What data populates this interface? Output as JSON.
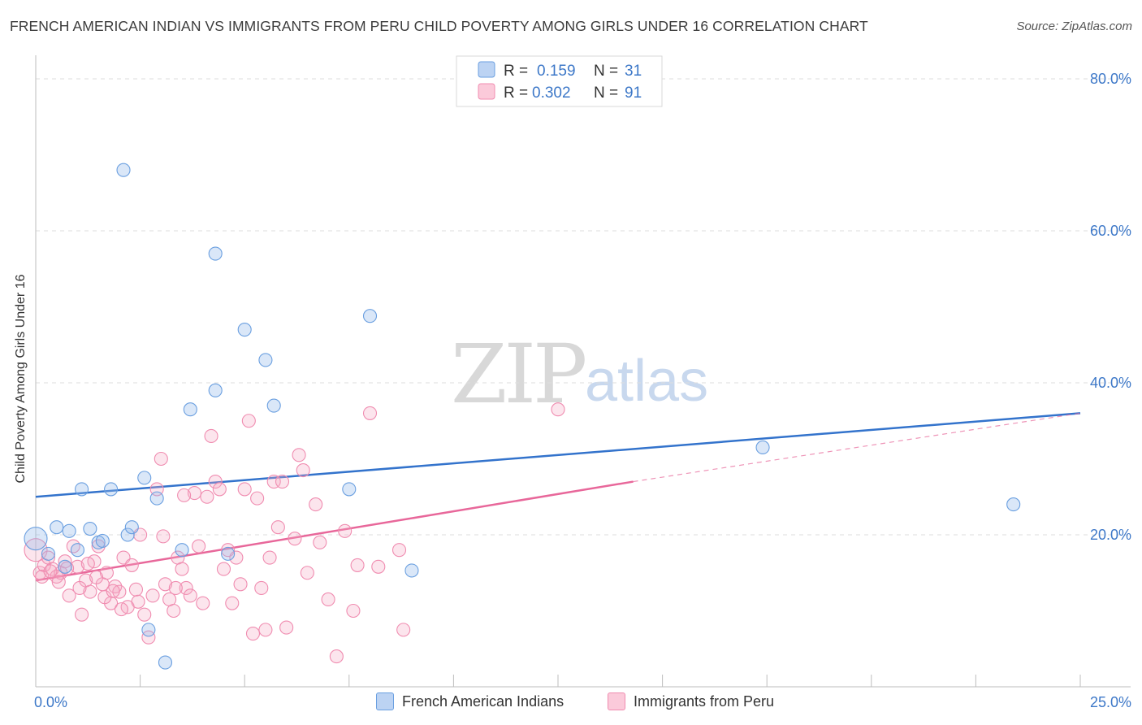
{
  "title": "FRENCH AMERICAN INDIAN VS IMMIGRANTS FROM PERU CHILD POVERTY AMONG GIRLS UNDER 16 CORRELATION CHART",
  "source": "Source: ZipAtlas.com",
  "watermark": {
    "zip": "ZIP",
    "atlas": "atlas"
  },
  "legend": {
    "r_label": "R =",
    "n_label": "N =",
    "series1": {
      "r": "0.159",
      "n": "31"
    },
    "series2": {
      "r": "0.302",
      "n": "91"
    }
  },
  "bottom_legend": [
    "French American Indians",
    "Immigrants from Peru"
  ],
  "chart_data": {
    "type": "scatter",
    "title": "FRENCH AMERICAN INDIAN VS IMMIGRANTS FROM PERU CHILD POVERTY AMONG GIRLS UNDER 16 CORRELATION CHART",
    "xlabel": "",
    "ylabel": "Child Poverty Among Girls Under 16",
    "xlim": [
      0,
      25
    ],
    "ylim": [
      0,
      80
    ],
    "x_ticks": [
      "0.0%",
      "25.0%"
    ],
    "y_ticks": [
      {
        "value": 20,
        "label": "20.0%"
      },
      {
        "value": 40,
        "label": "40.0%"
      },
      {
        "value": 60,
        "label": "60.0%"
      },
      {
        "value": 80,
        "label": "80.0%"
      }
    ],
    "colors": {
      "series1": "#6a9fe0",
      "series2": "#f08cb0",
      "line1": "#3373cc",
      "line2": "#e8679a"
    },
    "series": [
      {
        "name": "French American Indians",
        "r": 0.159,
        "n": 31,
        "trend": {
          "x": [
            0,
            25
          ],
          "y": [
            25.0,
            36.0
          ]
        },
        "points": [
          {
            "x": 0.0,
            "y": 19.5,
            "big": true
          },
          {
            "x": 0.3,
            "y": 17.5
          },
          {
            "x": 0.5,
            "y": 21.0
          },
          {
            "x": 0.7,
            "y": 15.8
          },
          {
            "x": 0.8,
            "y": 20.5
          },
          {
            "x": 1.0,
            "y": 18.0
          },
          {
            "x": 1.1,
            "y": 26.0
          },
          {
            "x": 1.3,
            "y": 20.8
          },
          {
            "x": 1.5,
            "y": 19.0
          },
          {
            "x": 1.6,
            "y": 19.2
          },
          {
            "x": 1.8,
            "y": 26.0
          },
          {
            "x": 2.1,
            "y": 68.0
          },
          {
            "x": 2.2,
            "y": 20.0
          },
          {
            "x": 2.3,
            "y": 21.0
          },
          {
            "x": 2.6,
            "y": 27.5
          },
          {
            "x": 2.7,
            "y": 7.5
          },
          {
            "x": 2.9,
            "y": 24.8
          },
          {
            "x": 3.1,
            "y": 3.2
          },
          {
            "x": 3.5,
            "y": 18.0
          },
          {
            "x": 3.7,
            "y": 36.5
          },
          {
            "x": 4.3,
            "y": 57.0
          },
          {
            "x": 4.3,
            "y": 39.0
          },
          {
            "x": 4.6,
            "y": 17.5
          },
          {
            "x": 5.0,
            "y": 47.0
          },
          {
            "x": 5.5,
            "y": 43.0
          },
          {
            "x": 5.7,
            "y": 37.0
          },
          {
            "x": 7.5,
            "y": 26.0
          },
          {
            "x": 8.0,
            "y": 48.8
          },
          {
            "x": 9.0,
            "y": 15.3
          },
          {
            "x": 17.4,
            "y": 31.5
          },
          {
            "x": 23.4,
            "y": 24.0
          }
        ]
      },
      {
        "name": "Immigrants from Peru",
        "r": 0.302,
        "n": 91,
        "trend": {
          "x": [
            0,
            14.3
          ],
          "y": [
            14.0,
            27.0
          ]
        },
        "trend_dashed": {
          "x": [
            14.3,
            25
          ],
          "y": [
            27.0,
            36.0
          ]
        },
        "points": [
          {
            "x": 0.0,
            "y": 18.0,
            "big": true
          },
          {
            "x": 0.1,
            "y": 15.0
          },
          {
            "x": 0.2,
            "y": 16.0
          },
          {
            "x": 0.3,
            "y": 17.0
          },
          {
            "x": 0.4,
            "y": 15.5
          },
          {
            "x": 0.5,
            "y": 14.5
          },
          {
            "x": 0.6,
            "y": 15.0
          },
          {
            "x": 0.7,
            "y": 16.5
          },
          {
            "x": 0.8,
            "y": 12.0
          },
          {
            "x": 0.9,
            "y": 18.5
          },
          {
            "x": 1.0,
            "y": 15.8
          },
          {
            "x": 1.1,
            "y": 9.5
          },
          {
            "x": 1.2,
            "y": 14.0
          },
          {
            "x": 1.3,
            "y": 12.5
          },
          {
            "x": 1.4,
            "y": 16.5
          },
          {
            "x": 1.5,
            "y": 18.5
          },
          {
            "x": 1.6,
            "y": 13.5
          },
          {
            "x": 1.7,
            "y": 15.0
          },
          {
            "x": 1.8,
            "y": 11.0
          },
          {
            "x": 1.9,
            "y": 13.2
          },
          {
            "x": 2.0,
            "y": 12.5
          },
          {
            "x": 2.1,
            "y": 17.0
          },
          {
            "x": 2.2,
            "y": 10.5
          },
          {
            "x": 2.3,
            "y": 16.0
          },
          {
            "x": 2.4,
            "y": 12.8
          },
          {
            "x": 2.5,
            "y": 20.0
          },
          {
            "x": 2.6,
            "y": 9.5
          },
          {
            "x": 2.7,
            "y": 6.5
          },
          {
            "x": 2.8,
            "y": 12.0
          },
          {
            "x": 2.9,
            "y": 26.0
          },
          {
            "x": 3.0,
            "y": 30.0
          },
          {
            "x": 3.1,
            "y": 13.5
          },
          {
            "x": 3.2,
            "y": 11.5
          },
          {
            "x": 3.3,
            "y": 10.0
          },
          {
            "x": 3.4,
            "y": 17.0
          },
          {
            "x": 3.5,
            "y": 15.5
          },
          {
            "x": 3.6,
            "y": 13.0
          },
          {
            "x": 3.7,
            "y": 12.0
          },
          {
            "x": 3.8,
            "y": 25.5
          },
          {
            "x": 3.9,
            "y": 18.5
          },
          {
            "x": 4.0,
            "y": 11.0
          },
          {
            "x": 4.1,
            "y": 25.0
          },
          {
            "x": 4.2,
            "y": 33.0
          },
          {
            "x": 4.3,
            "y": 27.0
          },
          {
            "x": 4.4,
            "y": 26.0
          },
          {
            "x": 4.5,
            "y": 15.5
          },
          {
            "x": 4.6,
            "y": 18.0
          },
          {
            "x": 4.7,
            "y": 11.0
          },
          {
            "x": 4.8,
            "y": 17.0
          },
          {
            "x": 4.9,
            "y": 13.5
          },
          {
            "x": 5.0,
            "y": 26.0
          },
          {
            "x": 5.1,
            "y": 35.0
          },
          {
            "x": 5.2,
            "y": 7.0
          },
          {
            "x": 5.3,
            "y": 24.8
          },
          {
            "x": 5.4,
            "y": 13.0
          },
          {
            "x": 5.5,
            "y": 7.5
          },
          {
            "x": 5.6,
            "y": 17.0
          },
          {
            "x": 5.7,
            "y": 27.0
          },
          {
            "x": 5.8,
            "y": 21.0
          },
          {
            "x": 5.9,
            "y": 27.0
          },
          {
            "x": 6.0,
            "y": 7.8
          },
          {
            "x": 6.2,
            "y": 19.5
          },
          {
            "x": 6.3,
            "y": 30.5
          },
          {
            "x": 6.4,
            "y": 28.5
          },
          {
            "x": 6.5,
            "y": 15.0
          },
          {
            "x": 6.7,
            "y": 24.0
          },
          {
            "x": 6.8,
            "y": 19.0
          },
          {
            "x": 7.0,
            "y": 11.5
          },
          {
            "x": 7.2,
            "y": 4.0
          },
          {
            "x": 7.4,
            "y": 20.5
          },
          {
            "x": 7.6,
            "y": 10.0
          },
          {
            "x": 7.7,
            "y": 16.0
          },
          {
            "x": 8.0,
            "y": 36.0
          },
          {
            "x": 8.2,
            "y": 15.8
          },
          {
            "x": 8.7,
            "y": 18.0
          },
          {
            "x": 8.8,
            "y": 7.5
          },
          {
            "x": 12.5,
            "y": 36.5
          },
          {
            "x": 0.15,
            "y": 14.5
          },
          {
            "x": 0.35,
            "y": 15.2
          },
          {
            "x": 0.55,
            "y": 13.8
          },
          {
            "x": 0.75,
            "y": 15.6
          },
          {
            "x": 1.05,
            "y": 13.0
          },
          {
            "x": 1.25,
            "y": 16.2
          },
          {
            "x": 1.45,
            "y": 14.4
          },
          {
            "x": 1.65,
            "y": 11.8
          },
          {
            "x": 1.85,
            "y": 12.6
          },
          {
            "x": 2.05,
            "y": 10.2
          },
          {
            "x": 2.45,
            "y": 11.2
          },
          {
            "x": 3.05,
            "y": 19.8
          },
          {
            "x": 3.35,
            "y": 13.0
          },
          {
            "x": 3.55,
            "y": 25.2
          }
        ]
      }
    ]
  }
}
